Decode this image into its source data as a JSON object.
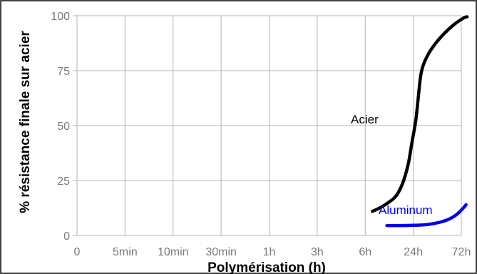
{
  "chart_data": {
    "type": "line",
    "xlabel": "Polymérisation (h)",
    "ylabel": "% résistance finale sur acier",
    "categories": [
      "0",
      "5min",
      "10min",
      "30min",
      "1h",
      "3h",
      "6h",
      "24h",
      "72h"
    ],
    "ylim": [
      0,
      100
    ],
    "yticks": [
      0,
      25,
      50,
      75,
      100
    ],
    "grid": true,
    "legend": "inline labels",
    "series": [
      {
        "name": "Acier",
        "color": "#000000",
        "points": [
          [
            6.15,
            11
          ],
          [
            6.3,
            12.5
          ],
          [
            6.45,
            14.5
          ],
          [
            6.6,
            17
          ],
          [
            6.7,
            20
          ],
          [
            6.8,
            25
          ],
          [
            6.9,
            33
          ],
          [
            6.97,
            42
          ],
          [
            7.05,
            52
          ],
          [
            7.1,
            62
          ],
          [
            7.15,
            72
          ],
          [
            7.2,
            77
          ],
          [
            7.3,
            82
          ],
          [
            7.45,
            87
          ],
          [
            7.65,
            92
          ],
          [
            7.85,
            96
          ],
          [
            8.05,
            99
          ],
          [
            8.12,
            99.5
          ]
        ]
      },
      {
        "name": "Aluminum",
        "color": "#0000ee",
        "points": [
          [
            6.45,
            4.5
          ],
          [
            6.7,
            4.5
          ],
          [
            7.0,
            4.6
          ],
          [
            7.3,
            5.0
          ],
          [
            7.55,
            6.0
          ],
          [
            7.75,
            7.5
          ],
          [
            7.9,
            9.5
          ],
          [
            8.02,
            12
          ],
          [
            8.1,
            14
          ]
        ]
      }
    ]
  },
  "colors": {
    "grid": "#b4b4b4",
    "tick_text": "#7a7a7a",
    "frame": "#000000"
  }
}
